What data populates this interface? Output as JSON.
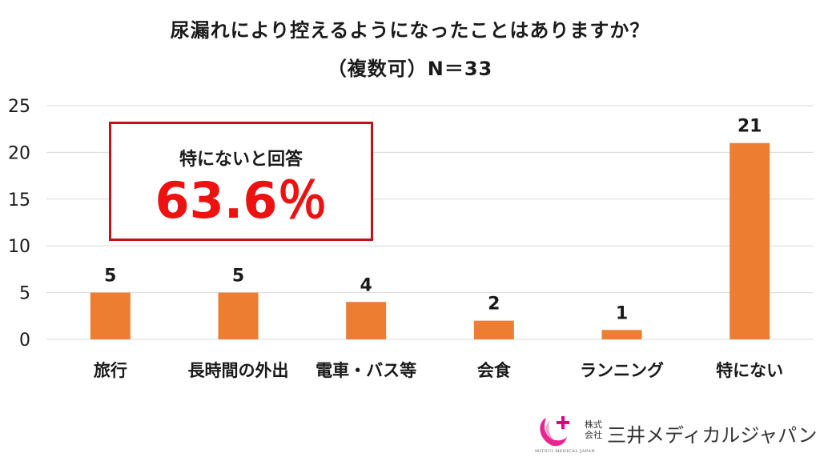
{
  "title_line1": "尿漏れにより控えるようになったことはありますか？",
  "title_line2": "（複数可）N＝33",
  "callout": {
    "label": "特にないと回答",
    "value": "63.6％"
  },
  "logo": {
    "company_prefix": "株式会社",
    "company_name": "三井メディカルジャパン",
    "sub": "MITSUI MEDICAL JAPAN"
  },
  "colors": {
    "bar": "#ED7D31",
    "callout_border": "#C0141C",
    "callout_value": "#EE1111",
    "grid": "#D9D9D9"
  },
  "chart_data": {
    "type": "bar",
    "title": "尿漏れにより控えるようになったことはありますか？",
    "subtitle": "（複数可）N＝33",
    "categories": [
      "旅行",
      "長時間の外出",
      "電車・バス等",
      "会食",
      "ランニング",
      "特にない"
    ],
    "values": [
      5,
      5,
      4,
      2,
      1,
      21
    ],
    "ylim": [
      0,
      25
    ],
    "yticks": [
      0,
      5,
      10,
      15,
      20,
      25
    ],
    "xlabel": "",
    "ylabel": "",
    "grid": true,
    "legend": "none"
  }
}
